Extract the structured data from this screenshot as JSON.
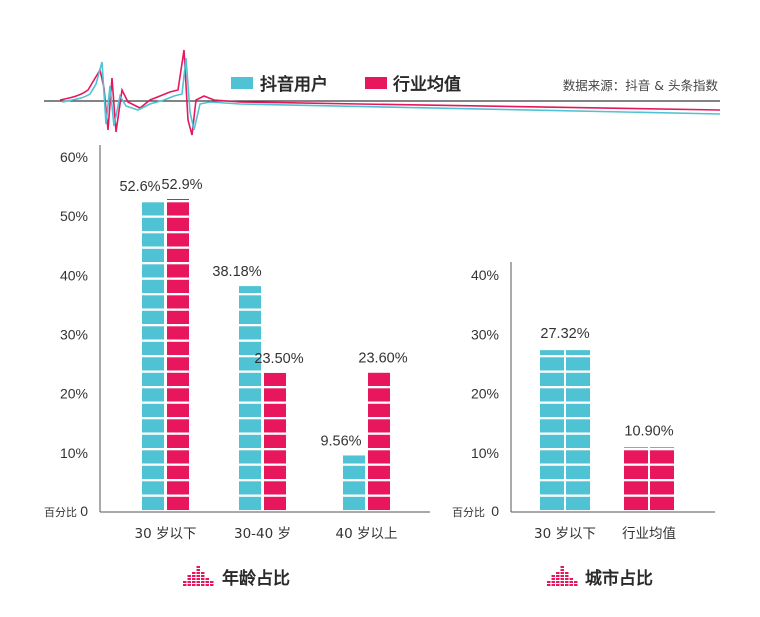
{
  "legend": {
    "items": [
      {
        "name": "抖音用户",
        "color": "#4fc3d3"
      },
      {
        "name": "行业均值",
        "color": "#e8175d"
      }
    ],
    "source": "数据来源：抖音 & 头条指数"
  },
  "chart_data": [
    {
      "type": "bar",
      "title": "年龄占比",
      "ylabel": "百分比",
      "ylim": [
        0,
        60
      ],
      "yticks": [
        "0",
        "10%",
        "20%",
        "30%",
        "40%",
        "50%",
        "60%"
      ],
      "categories": [
        "30 岁以下",
        "30-40 岁",
        "40 岁以上"
      ],
      "series": [
        {
          "name": "抖音用户",
          "values": [
            52.6,
            38.18,
            9.56
          ],
          "labels": [
            "52.6%",
            "38.18%",
            "9.56%"
          ]
        },
        {
          "name": "行业均值",
          "values": [
            52.9,
            23.5,
            23.6
          ],
          "labels": [
            "52.9%",
            "23.50%",
            "23.60%"
          ]
        }
      ]
    },
    {
      "type": "bar",
      "title": "城市占比",
      "ylabel": "百分比",
      "ylim": [
        0,
        40
      ],
      "yticks": [
        "0",
        "10%",
        "20%",
        "30%",
        "40%"
      ],
      "categories": [
        "30 岁以下",
        "行业均值"
      ],
      "bars": [
        {
          "series": "抖音用户",
          "value": 27.32,
          "label": "27.32%"
        },
        {
          "series": "行业均值",
          "value": 10.9,
          "label": "10.90%"
        }
      ]
    }
  ]
}
